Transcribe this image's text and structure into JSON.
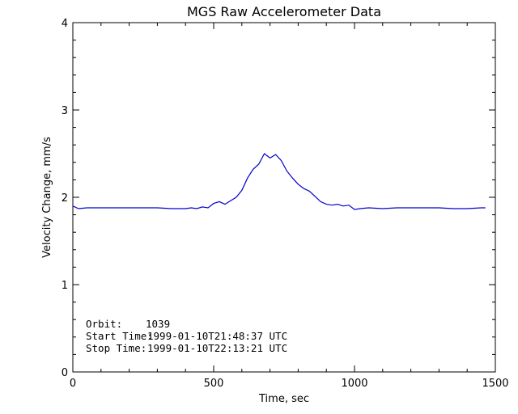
{
  "chart_data": {
    "type": "line",
    "title": "MGS Raw Accelerometer Data",
    "xlabel": "Time, sec",
    "ylabel": "Velocity Change, mm/s",
    "xlim": [
      0,
      1500
    ],
    "ylim": [
      0,
      4
    ],
    "x_ticks": [
      0,
      500,
      1000,
      1500
    ],
    "y_ticks": [
      0,
      1,
      2,
      3,
      4
    ],
    "x_tick_labels": [
      "0",
      "500",
      "1000",
      "1500"
    ],
    "y_tick_labels": [
      "0",
      "1",
      "2",
      "3",
      "4"
    ],
    "grid": false,
    "line_color": "#0000cc",
    "x": [
      0,
      20,
      50,
      100,
      150,
      200,
      250,
      300,
      350,
      400,
      420,
      440,
      460,
      480,
      500,
      520,
      540,
      560,
      580,
      600,
      620,
      640,
      660,
      670,
      680,
      700,
      720,
      740,
      760,
      780,
      800,
      820,
      840,
      860,
      880,
      900,
      920,
      940,
      960,
      980,
      1000,
      1020,
      1050,
      1100,
      1150,
      1200,
      1250,
      1300,
      1350,
      1400,
      1450,
      1465
    ],
    "y": [
      1.9,
      1.87,
      1.88,
      1.88,
      1.88,
      1.88,
      1.88,
      1.88,
      1.87,
      1.87,
      1.88,
      1.87,
      1.89,
      1.88,
      1.93,
      1.95,
      1.92,
      1.96,
      2.0,
      2.08,
      2.22,
      2.32,
      2.38,
      2.44,
      2.5,
      2.45,
      2.49,
      2.42,
      2.3,
      2.22,
      2.15,
      2.1,
      2.07,
      2.01,
      1.95,
      1.92,
      1.91,
      1.92,
      1.9,
      1.91,
      1.86,
      1.87,
      1.88,
      1.87,
      1.88,
      1.88,
      1.88,
      1.88,
      1.87,
      1.87,
      1.88,
      1.88
    ],
    "annotations": [
      {
        "label": "Orbit:",
        "value": "1039"
      },
      {
        "label": "Start Time:",
        "value": "1999-01-10T21:48:37 UTC"
      },
      {
        "label": "Stop Time:",
        "value": "1999-01-10T22:13:21 UTC"
      }
    ]
  }
}
